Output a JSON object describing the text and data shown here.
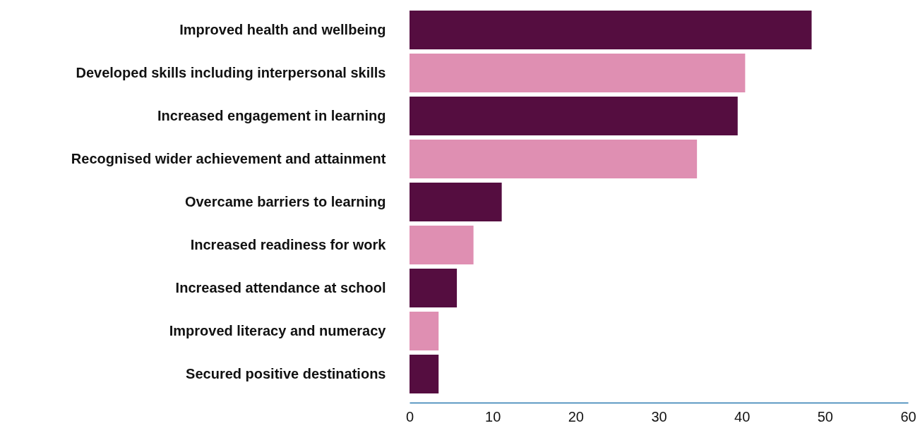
{
  "chart_data": {
    "type": "bar",
    "orientation": "horizontal",
    "categories": [
      "Improved health and wellbeing",
      "Developed skills including interpersonal skills",
      "Increased engagement in learning",
      "Recognised wider achievement and attainment",
      "Overcame barriers to learning",
      "Increased readiness for work",
      "Increased attendance at school",
      "Improved literacy and numeracy",
      "Secured positive destinations"
    ],
    "values": [
      48.4,
      40.4,
      39.5,
      34.6,
      11.1,
      7.7,
      5.7,
      3.5,
      3.5
    ],
    "colors": [
      "#550d40",
      "#df8fb2",
      "#550d40",
      "#df8fb2",
      "#550d40",
      "#df8fb2",
      "#550d40",
      "#df8fb2",
      "#550d40"
    ],
    "xlim": [
      0,
      60
    ],
    "xticks": [
      0,
      10,
      20,
      30,
      40,
      50,
      60
    ],
    "grid": false
  }
}
